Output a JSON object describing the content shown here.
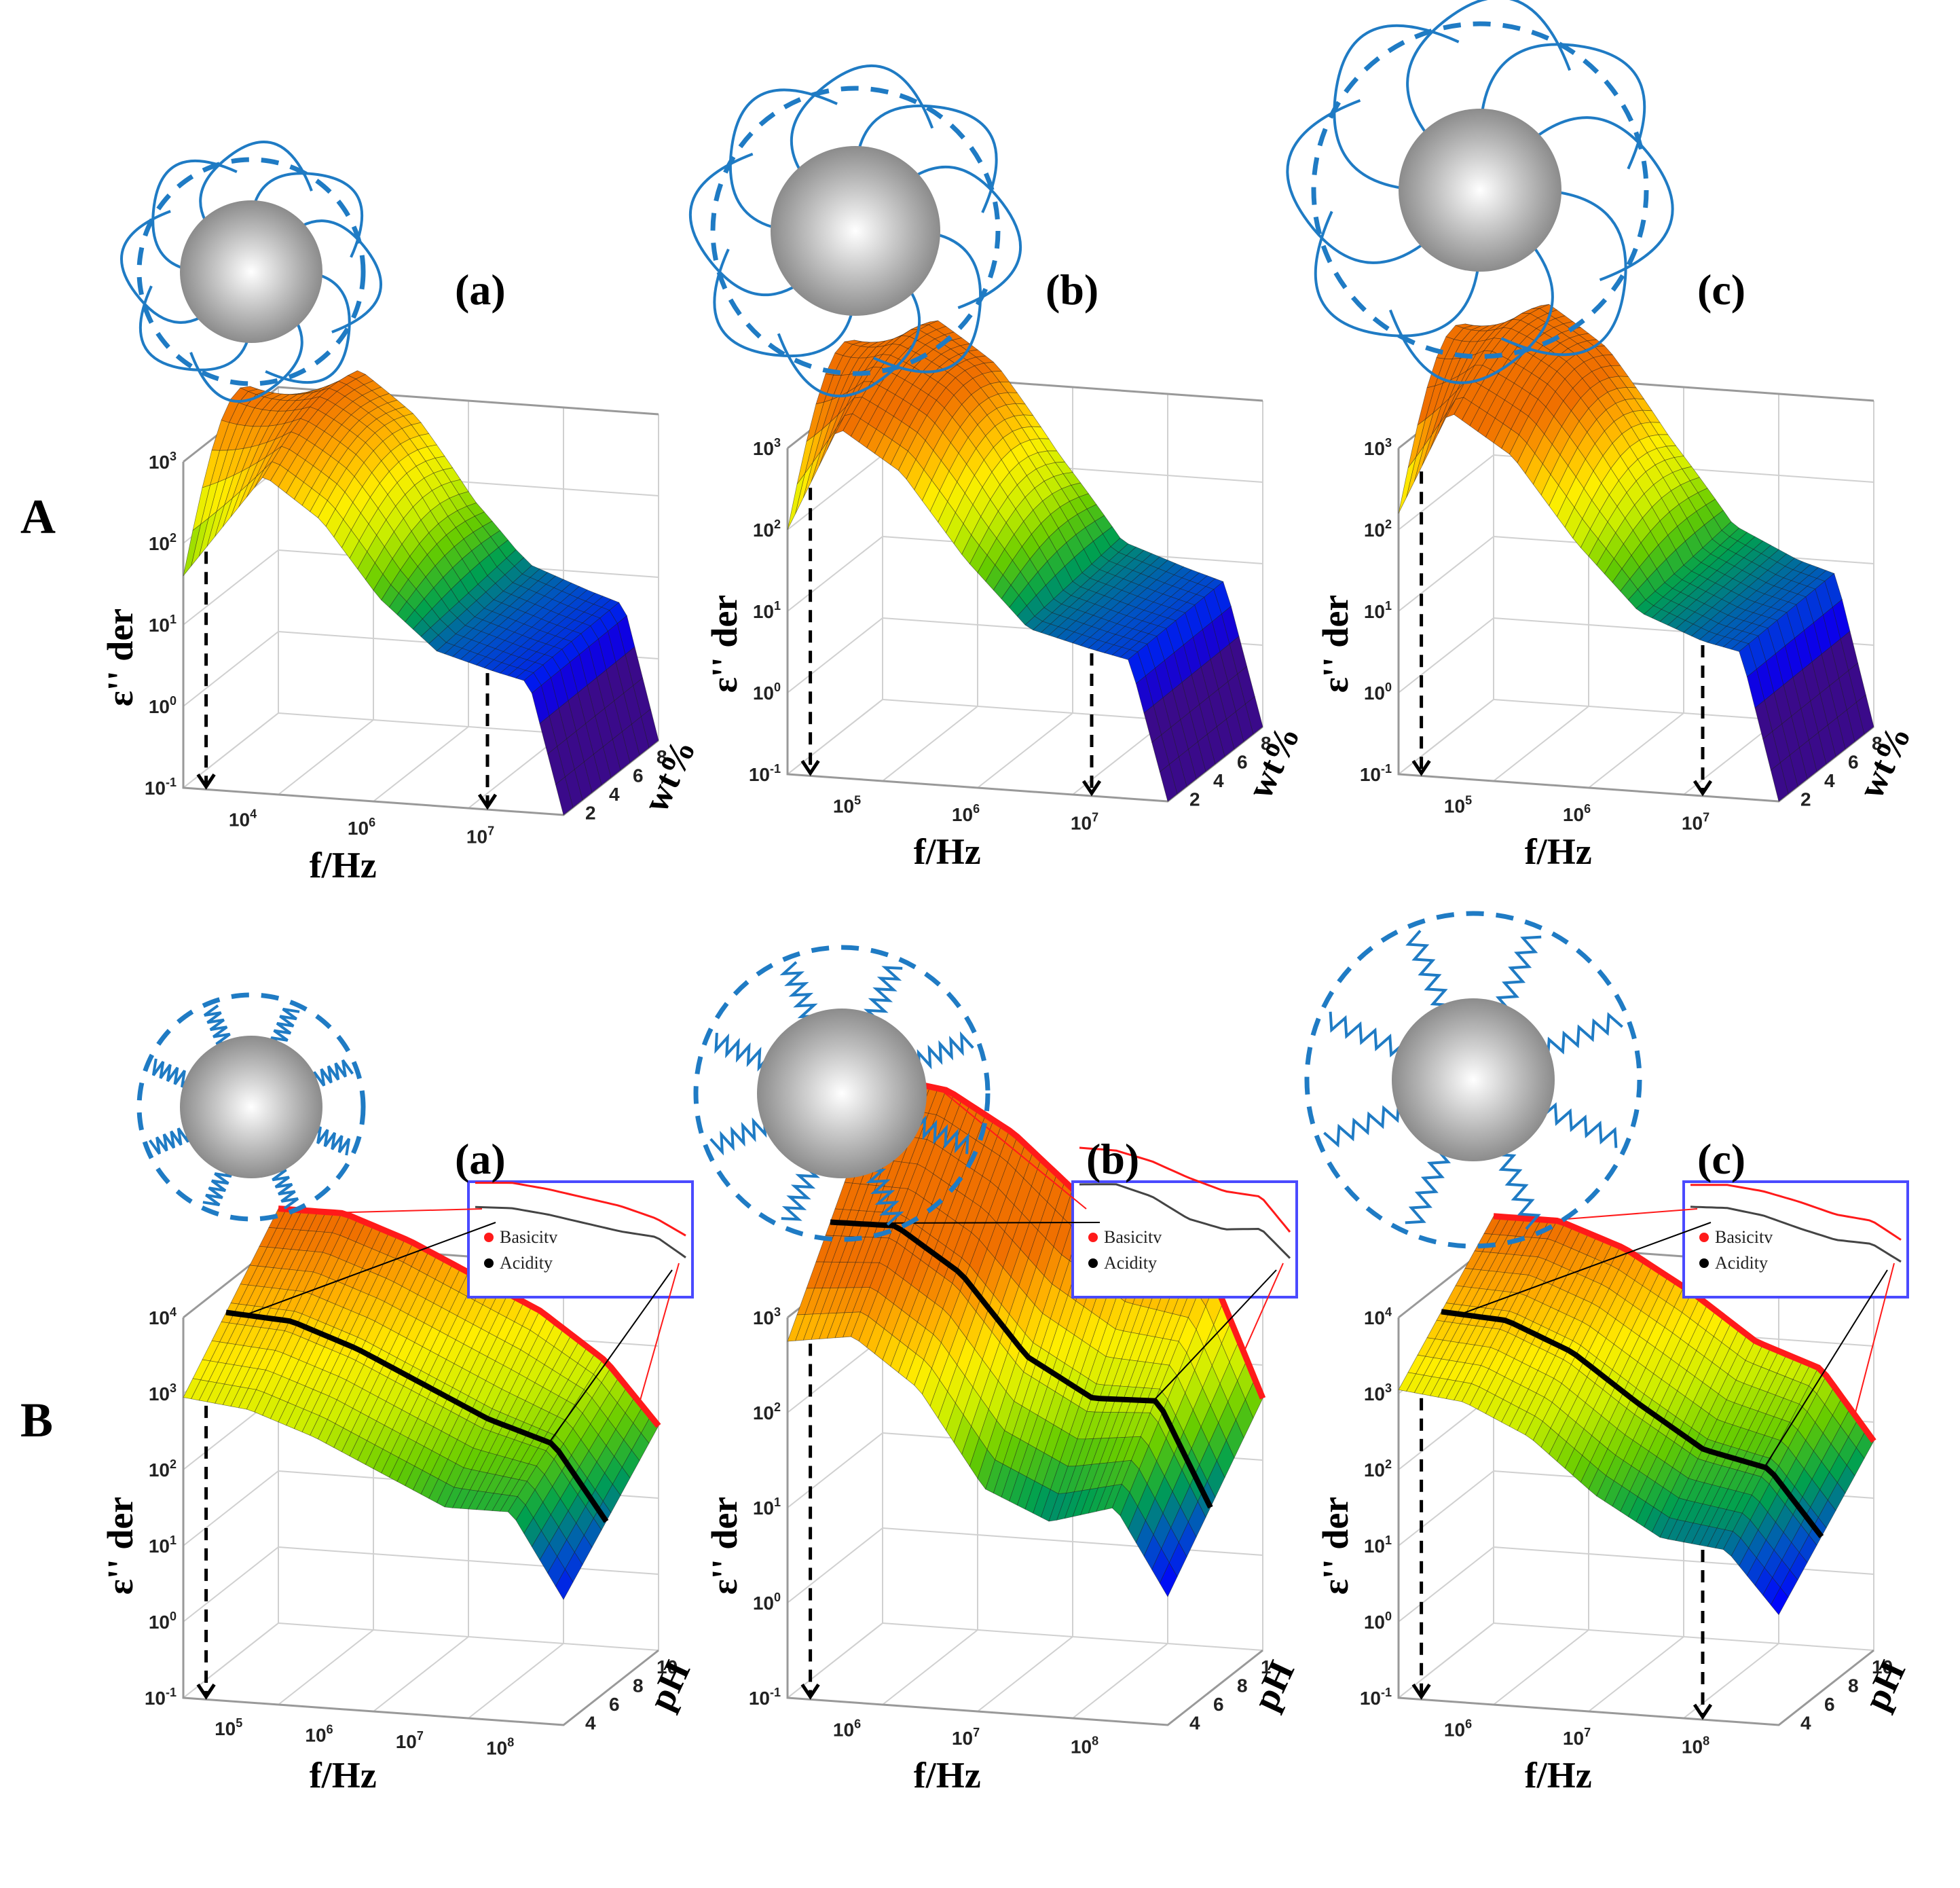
{
  "figure": {
    "row_labels": [
      "A",
      "B"
    ],
    "panel_labels": [
      "(a)",
      "(b)",
      "(c)"
    ],
    "colors": {
      "particle_shell": "#1f7bc4",
      "particle_core_light": "#ffffff",
      "particle_core_dark": "#808080",
      "basicity": "#ff1a1a",
      "acidity": "#000000",
      "inset_frame": "#4a4aff",
      "grid": "#d0d0d0",
      "colormap": [
        "#3a0a8a",
        "#0000ff",
        "#0050c8",
        "#00a050",
        "#66cc00",
        "#ccee00",
        "#ffee00",
        "#ffb000",
        "#f07000"
      ]
    }
  },
  "chart_data": [
    {
      "id": "A-a",
      "type": "surface3d",
      "row": "A",
      "panel": "(a)",
      "xlabel": "f/Hz",
      "ylabel": "ε'' der",
      "zlabel": "wt%",
      "x_ticks": [
        "10^4",
        "10^6",
        "10^7"
      ],
      "y_ticks": [
        "10^-1",
        "10^0",
        "10^1",
        "10^2",
        "10^3"
      ],
      "z_ticks": [
        "2",
        "4",
        "6",
        "8"
      ],
      "profile_front": {
        "x_log": [
          4.3,
          5,
          5.5,
          6,
          6.5,
          7,
          7.3,
          7.6
        ],
        "y_log": [
          1.6,
          2.9,
          2.4,
          1.5,
          0.9,
          0.7,
          0.6,
          -1.0
        ]
      },
      "peak_value_log": 3.3,
      "annotations": [
        "dashed arrow at low-frequency edge",
        "dashed arrow near 10^7.3 Hz"
      ]
    },
    {
      "id": "A-b",
      "type": "surface3d",
      "row": "A",
      "panel": "(b)",
      "xlabel": "f/Hz",
      "ylabel": "ε'' der",
      "zlabel": "wt%",
      "x_ticks": [
        "10^5",
        "10^6",
        "10^7"
      ],
      "y_ticks": [
        "10^-1",
        "10^0",
        "10^1",
        "10^2",
        "10^3"
      ],
      "z_ticks": [
        "2",
        "4",
        "6",
        "8"
      ],
      "profile_front": {
        "x_log": [
          4.6,
          5,
          5.5,
          6,
          6.5,
          7,
          7.3,
          7.6
        ],
        "y_log": [
          2.0,
          3.3,
          2.8,
          1.8,
          1.0,
          0.8,
          0.7,
          -1.0
        ]
      },
      "peak_value_log": 3.7,
      "annotations": [
        "dashed arrow at low-frequency edge",
        "dashed arrow near 10^7.3 Hz"
      ]
    },
    {
      "id": "A-c",
      "type": "surface3d",
      "row": "A",
      "panel": "(c)",
      "xlabel": "f/Hz",
      "ylabel": "ε'' der",
      "zlabel": "wt%",
      "x_ticks": [
        "10^5",
        "10^6",
        "10^7"
      ],
      "y_ticks": [
        "10^-1",
        "10^0",
        "10^1",
        "10^2",
        "10^3"
      ],
      "z_ticks": [
        "2",
        "4",
        "6",
        "8"
      ],
      "profile_front": {
        "x_log": [
          4.6,
          5,
          5.5,
          6,
          6.5,
          7,
          7.3,
          7.6
        ],
        "y_log": [
          2.2,
          3.5,
          3.0,
          2.0,
          1.2,
          0.9,
          0.8,
          -1.0
        ]
      },
      "peak_value_log": 3.9,
      "annotations": [
        "dashed arrow at low-frequency edge",
        "dashed arrow near 10^7.4 Hz"
      ]
    },
    {
      "id": "B-a",
      "type": "surface3d",
      "row": "B",
      "panel": "(a)",
      "xlabel": "f/Hz",
      "ylabel": "ε'' der",
      "zlabel": "pH",
      "x_ticks": [
        "10^5",
        "10^6",
        "10^7",
        "10^8"
      ],
      "y_ticks": [
        "10^-1",
        "10^0",
        "10^1",
        "10^2",
        "10^3",
        "10^4"
      ],
      "z_ticks": [
        "4",
        "6",
        "8",
        "10"
      ],
      "legend": [
        {
          "label": "Basicitv",
          "color": "#ff1a1a"
        },
        {
          "label": "Acidity",
          "color": "#000000"
        }
      ],
      "series": [
        {
          "name": "Basicitv",
          "x_log": [
            5,
            5.5,
            6,
            6.5,
            7,
            7.5,
            7.9
          ],
          "y_log": [
            4.3,
            4.3,
            4.0,
            3.6,
            3.2,
            2.6,
            1.8
          ]
        },
        {
          "name": "Acidity",
          "x_log": [
            5,
            5.5,
            6,
            6.5,
            7,
            7.5,
            7.9
          ],
          "y_log": [
            3.1,
            3.0,
            2.7,
            2.3,
            1.9,
            1.9,
            0.8
          ]
        }
      ],
      "inset": "zoomed 2D projection of Basicitv and Acidity edge curves"
    },
    {
      "id": "B-b",
      "type": "surface3d",
      "row": "B",
      "panel": "(b)",
      "xlabel": "f/Hz",
      "ylabel": "ε'' der",
      "zlabel": "pH",
      "x_ticks": [
        "10^6",
        "10^7",
        "10^8"
      ],
      "y_ticks": [
        "10^-1",
        "10^0",
        "10^1",
        "10^2",
        "10^3"
      ],
      "z_ticks": [
        "4",
        "6",
        "8",
        "1"
      ],
      "legend": [
        {
          "label": "Basicitv",
          "color": "#ff1a1a"
        },
        {
          "label": "Acidity",
          "color": "#000000"
        }
      ],
      "series": [
        {
          "name": "Basicitv",
          "x_log": [
            5,
            5.5,
            6,
            6.5,
            7,
            7.5,
            7.9
          ],
          "y_log": [
            4.6,
            4.5,
            4.1,
            3.5,
            3.0,
            2.8,
            1.5
          ]
        },
        {
          "name": "Acidity",
          "x_log": [
            5,
            5.5,
            6,
            6.5,
            7,
            7.5,
            7.9
          ],
          "y_log": [
            2.9,
            3.0,
            2.5,
            1.5,
            1.2,
            1.4,
            0.5
          ]
        }
      ],
      "inset": "zoomed 2D projection of Basicitv and Acidity edge curves"
    },
    {
      "id": "B-c",
      "type": "surface3d",
      "row": "B",
      "panel": "(c)",
      "xlabel": "f/Hz",
      "ylabel": "ε'' der",
      "zlabel": "pH",
      "x_ticks": [
        "10^6",
        "10^7",
        "10^8"
      ],
      "y_ticks": [
        "10^-1",
        "10^0",
        "10^1",
        "10^2",
        "10^3",
        "10^4"
      ],
      "z_ticks": [
        "4",
        "6",
        "8",
        "10"
      ],
      "legend": [
        {
          "label": "Basicitv",
          "color": "#ff1a1a"
        },
        {
          "label": "Acidity",
          "color": "#000000"
        }
      ],
      "series": [
        {
          "name": "Basicitv",
          "x_log": [
            5,
            5.5,
            6,
            6.5,
            7,
            7.5,
            7.9
          ],
          "y_log": [
            4.2,
            4.2,
            3.9,
            3.4,
            2.8,
            2.5,
            1.6
          ]
        },
        {
          "name": "Acidity",
          "x_log": [
            5,
            5.5,
            6,
            6.5,
            7,
            7.5,
            7.9
          ],
          "y_log": [
            3.2,
            3.1,
            2.7,
            2.0,
            1.5,
            1.4,
            0.6
          ]
        }
      ],
      "inset": "zoomed 2D projection of Basicitv and Acidity edge curves"
    }
  ]
}
